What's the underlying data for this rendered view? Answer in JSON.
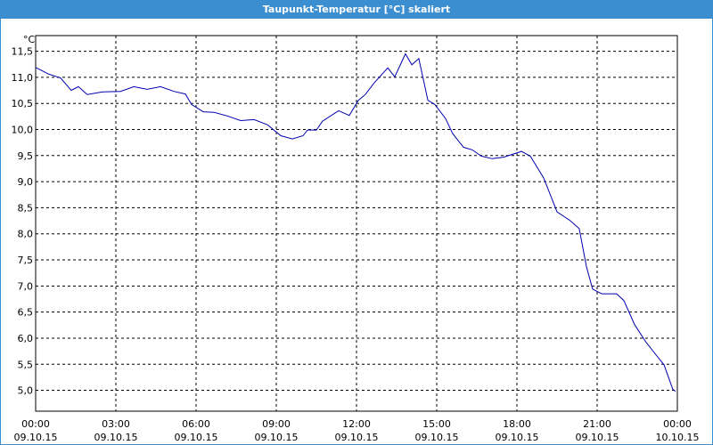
{
  "chart_data": {
    "type": "line",
    "title": "Taupunkt-Temperatur [°C] skaliert",
    "y_unit": "°C",
    "x": [
      0,
      0.5,
      0.93,
      1.33,
      1.6,
      1.93,
      2.5,
      3.17,
      3.67,
      4.17,
      4.67,
      5.17,
      5.6,
      5.83,
      6.27,
      6.67,
      7.17,
      7.67,
      8.17,
      8.67,
      9.17,
      9.6,
      10.0,
      10.17,
      10.5,
      10.73,
      11.33,
      11.73,
      12.07,
      12.33,
      12.67,
      13.17,
      13.43,
      13.83,
      14.07,
      14.33,
      14.67,
      14.93,
      15.33,
      15.6,
      16.0,
      16.33,
      16.67,
      17.07,
      17.5,
      18.17,
      18.5,
      19.0,
      19.5,
      20.0,
      20.33,
      20.6,
      20.83,
      21.17,
      21.73,
      22.0,
      22.4,
      22.83,
      23.17,
      23.5,
      23.83,
      23.93
    ],
    "series": [
      {
        "name": "Taupunkt",
        "color": "#0000b0",
        "values": [
          11.19,
          11.06,
          10.99,
          10.75,
          10.82,
          10.67,
          10.72,
          10.73,
          10.82,
          10.77,
          10.82,
          10.73,
          10.68,
          10.48,
          10.34,
          10.33,
          10.26,
          10.17,
          10.19,
          10.09,
          9.88,
          9.82,
          9.88,
          9.99,
          9.99,
          10.16,
          10.36,
          10.27,
          10.56,
          10.67,
          10.9,
          11.18,
          11.01,
          11.45,
          11.24,
          11.36,
          10.56,
          10.48,
          10.21,
          9.92,
          9.66,
          9.61,
          9.49,
          9.44,
          9.47,
          9.58,
          9.49,
          9.07,
          8.42,
          8.25,
          8.1,
          7.37,
          6.94,
          6.85,
          6.85,
          6.72,
          6.26,
          5.92,
          5.7,
          5.49,
          5.02,
          4.98
        ]
      }
    ],
    "xlim": [
      0,
      24
    ],
    "xticks": [
      {
        "value": 0,
        "label": "00:00"
      },
      {
        "value": 3,
        "label": "03:00"
      },
      {
        "value": 6,
        "label": "06:00"
      },
      {
        "value": 9,
        "label": "09:00"
      },
      {
        "value": 12,
        "label": "12:00"
      },
      {
        "value": 15,
        "label": "15:00"
      },
      {
        "value": 18,
        "label": "18:00"
      },
      {
        "value": 21,
        "label": "21:00"
      },
      {
        "value": 24,
        "label": "00:00"
      }
    ],
    "xtick_dates": [
      "09.10.15",
      "09.10.15",
      "09.10.15",
      "09.10.15",
      "09.10.15",
      "09.10.15",
      "09.10.15",
      "09.10.15",
      "10.10.15"
    ],
    "ylim": [
      4.6,
      11.8
    ],
    "yticks": [
      {
        "value": 5,
        "label": "5,0"
      },
      {
        "value": 5.5,
        "label": "5,5"
      },
      {
        "value": 6,
        "label": "6,0"
      },
      {
        "value": 6.5,
        "label": "6,5"
      },
      {
        "value": 7,
        "label": "7,0"
      },
      {
        "value": 7.5,
        "label": "7,5"
      },
      {
        "value": 8,
        "label": "8,0"
      },
      {
        "value": 8.5,
        "label": "8,5"
      },
      {
        "value": 9,
        "label": "9,0"
      },
      {
        "value": 9.5,
        "label": "9,5"
      },
      {
        "value": 10,
        "label": "10,0"
      },
      {
        "value": 10.5,
        "label": "10,5"
      },
      {
        "value": 11,
        "label": "11,0"
      },
      {
        "value": 11.5,
        "label": "11,5"
      }
    ],
    "grid": true
  }
}
